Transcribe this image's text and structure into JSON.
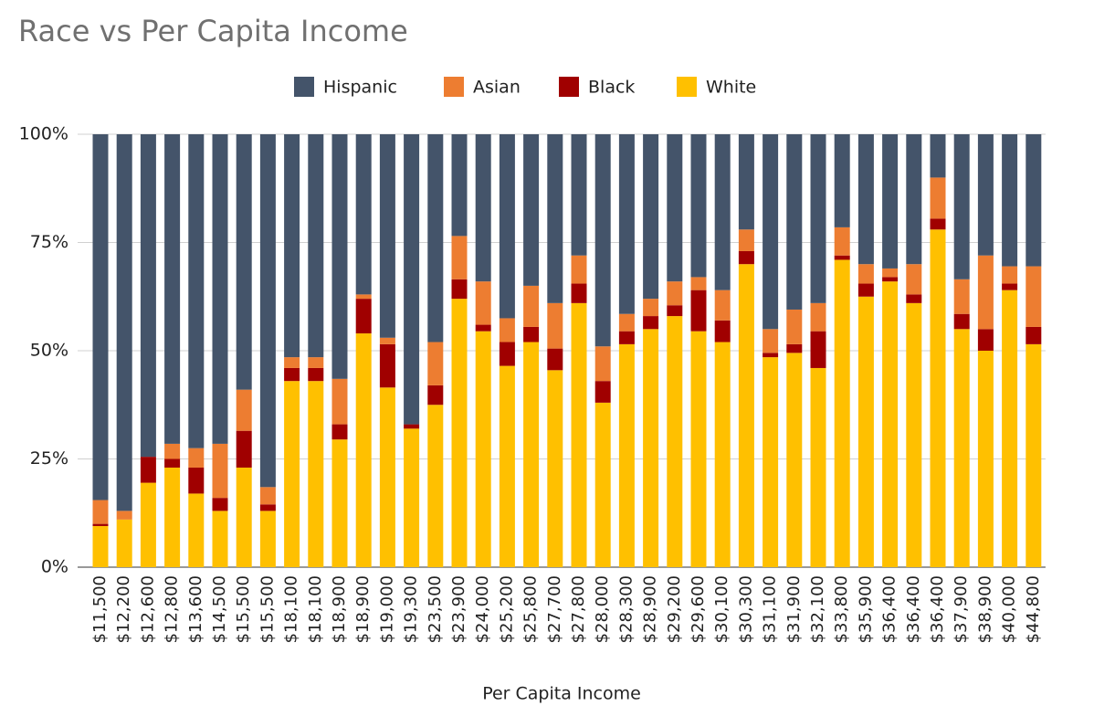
{
  "chart_data": {
    "type": "stacked_bar_100",
    "title": "Race vs Per Capita Income",
    "x_label": "Per Capita Income",
    "categories": [
      "$11,500",
      "$12,200",
      "$12,600",
      "$12,800",
      "$13,600",
      "$14,500",
      "$15,500",
      "$15,500",
      "$18,100",
      "$18,100",
      "$18,900",
      "$18,900",
      "$19,000",
      "$19,300",
      "$23,500",
      "$23,900",
      "$24,000",
      "$25,200",
      "$25,800",
      "$27,700",
      "$27,800",
      "$28,000",
      "$28,300",
      "$28,900",
      "$29,200",
      "$29,600",
      "$30,100",
      "$30,300",
      "$31,100",
      "$31,900",
      "$32,100",
      "$33,800",
      "$35,900",
      "$36,400",
      "$36,400",
      "$36,400",
      "$37,900",
      "$38,900",
      "$40,000",
      "$44,800"
    ],
    "series": [
      {
        "name": "Hispanic",
        "color": "#44546a",
        "values": [
          84.5,
          87,
          74.5,
          71.5,
          72.5,
          71.5,
          59,
          81.5,
          51.5,
          51.5,
          56.5,
          37,
          47,
          67,
          48,
          23.5,
          34,
          42.5,
          35,
          39,
          28,
          49,
          41.5,
          38,
          34,
          33,
          36,
          22,
          45,
          40.5,
          39,
          21.5,
          30,
          31,
          30,
          10,
          33.5,
          28,
          30.5,
          30.5
        ]
      },
      {
        "name": "Asian",
        "color": "#ed7d31",
        "values": [
          5.5,
          2,
          0,
          3.5,
          4.5,
          12.5,
          9.5,
          4,
          2.5,
          2.5,
          10.5,
          1,
          1.5,
          0,
          10,
          10,
          10,
          5.5,
          9.5,
          10.5,
          6.5,
          8,
          4,
          4,
          5.5,
          3,
          7,
          5,
          5.5,
          8,
          6.5,
          6.5,
          4.5,
          2,
          7,
          9.5,
          8,
          17,
          4,
          14
        ]
      },
      {
        "name": "Black",
        "color": "#a00000",
        "values": [
          0.5,
          0,
          6,
          2,
          6,
          3,
          8.5,
          1.5,
          3,
          3,
          3.5,
          8,
          10,
          1,
          4.5,
          4.5,
          1.5,
          5.5,
          3.5,
          5,
          4.5,
          5,
          3,
          3,
          2.5,
          9.5,
          5,
          3,
          1,
          2,
          8.5,
          1,
          3,
          1,
          2,
          2.5,
          3.5,
          5,
          1.5,
          4
        ]
      },
      {
        "name": "White",
        "color": "#ffc000",
        "values": [
          9.5,
          11,
          19.5,
          23,
          17,
          13,
          23,
          13,
          43,
          43,
          29.5,
          54,
          41.5,
          32,
          37.5,
          62,
          54.5,
          46.5,
          52,
          45.5,
          61,
          38,
          51.5,
          55,
          58,
          54.5,
          52,
          70,
          48.5,
          49.5,
          46,
          71,
          62.5,
          66,
          61,
          78,
          55,
          50,
          64,
          51.5
        ]
      }
    ],
    "ylim": [
      0,
      100
    ],
    "yticks": [
      {
        "value": 0,
        "label": "0%"
      },
      {
        "value": 25,
        "label": "25%"
      },
      {
        "value": 50,
        "label": "50%"
      },
      {
        "value": 75,
        "label": "75%"
      },
      {
        "value": 100,
        "label": "100%"
      }
    ],
    "grid": true,
    "legend": "top"
  }
}
